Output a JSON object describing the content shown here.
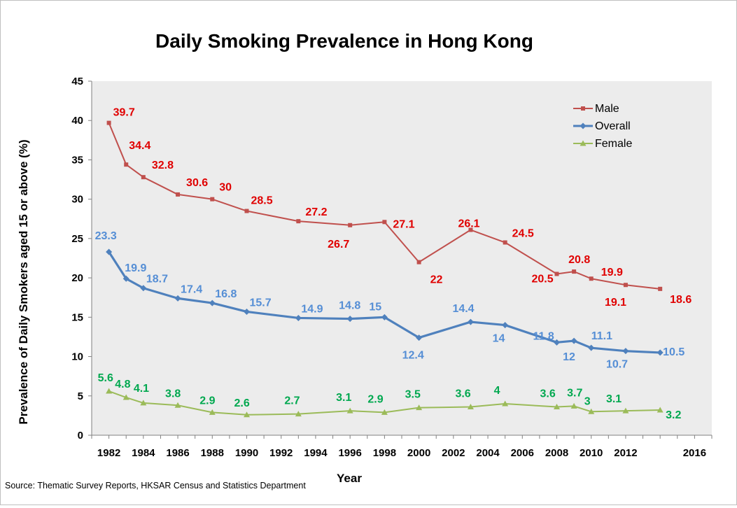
{
  "chart_data": {
    "type": "line",
    "title": "Daily Smoking Prevalence in Hong Kong",
    "xlabel": "Year",
    "ylabel": "Prevalence of Daily Smokers aged 15 or above (%)",
    "xlim": [
      1981,
      2017
    ],
    "ylim": [
      0,
      45
    ],
    "xticks": [
      1982,
      1984,
      1986,
      1988,
      1990,
      1992,
      1994,
      1996,
      1998,
      2000,
      2002,
      2004,
      2006,
      2008,
      2010,
      2012,
      2016
    ],
    "yticks": [
      0,
      5,
      10,
      15,
      20,
      25,
      30,
      35,
      40,
      45
    ],
    "grid": false,
    "legend_position": "top-right",
    "source": "Source: Thematic Survey Reports, HKSAR Census and Statistics Department",
    "series": [
      {
        "name": "Male",
        "color": "#c0504d",
        "label_color": "#e00000",
        "marker": "square",
        "x": [
          1982,
          1983,
          1984,
          1986,
          1988,
          1990,
          1993,
          1996,
          1998,
          2000,
          2003,
          2005,
          2008,
          2009,
          2010,
          2012,
          2014
        ],
        "values": [
          39.7,
          34.4,
          32.8,
          30.6,
          30,
          28.5,
          27.2,
          26.7,
          27.1,
          22,
          26.1,
          24.5,
          20.5,
          20.8,
          19.9,
          19.1,
          18.6
        ],
        "labels": [
          "39.7",
          "34.4",
          "32.8",
          "30.6",
          "30",
          "28.5",
          "27.2",
          "26.7",
          "27.1",
          "22",
          "26.1",
          "24.5",
          "20.5",
          "20.8",
          "19.9",
          "19.1",
          "18.6"
        ]
      },
      {
        "name": "Overall",
        "color": "#4f81bd",
        "label_color": "#558ed5",
        "marker": "diamond",
        "x": [
          1982,
          1983,
          1984,
          1986,
          1988,
          1990,
          1993,
          1996,
          1998,
          2000,
          2003,
          2005,
          2008,
          2009,
          2010,
          2012,
          2014
        ],
        "values": [
          23.3,
          19.9,
          18.7,
          17.4,
          16.8,
          15.7,
          14.9,
          14.8,
          15,
          12.4,
          14.4,
          14,
          11.8,
          12,
          11.1,
          10.7,
          10.5
        ],
        "labels": [
          "23.3",
          "19.9",
          "18.7",
          "17.4",
          "16.8",
          "15.7",
          "14.9",
          "14.8",
          "15",
          "12.4",
          "14.4",
          "14",
          "11.8",
          "12",
          "11.1",
          "10.7",
          "10.5"
        ]
      },
      {
        "name": "Female",
        "color": "#9bbb59",
        "label_color": "#00a84f",
        "marker": "triangle",
        "x": [
          1982,
          1983,
          1984,
          1986,
          1988,
          1990,
          1993,
          1996,
          1998,
          2000,
          2003,
          2005,
          2008,
          2009,
          2010,
          2012,
          2014
        ],
        "values": [
          5.6,
          4.8,
          4.1,
          3.8,
          2.9,
          2.6,
          2.7,
          3.1,
          2.9,
          3.5,
          3.6,
          4,
          3.6,
          3.7,
          3,
          3.1,
          3.2
        ],
        "labels": [
          "5.6",
          "4.8",
          "4.1",
          "3.8",
          "2.9",
          "2.6",
          "2.7",
          "3.1",
          "2.9",
          "3.5",
          "3.6",
          "4",
          "3.6",
          "3.7",
          "3",
          "3.1",
          "3.2"
        ]
      }
    ]
  }
}
